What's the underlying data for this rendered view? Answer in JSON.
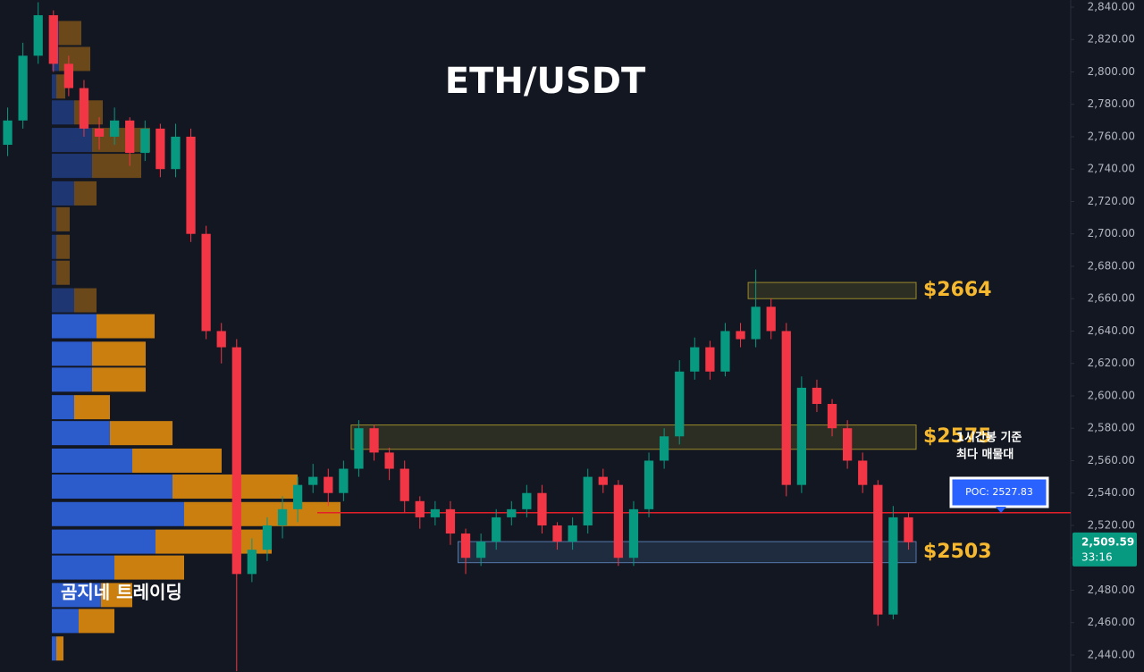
{
  "chart_data": {
    "type": "candlestick",
    "title": "ETH/USDT",
    "up_color": "#089981",
    "down_color": "#f23645",
    "open": [
      2755,
      2770,
      2810,
      2835,
      2805,
      2790,
      2765,
      2760,
      2770,
      2750,
      2765,
      2740,
      2760,
      2700,
      2640,
      2630,
      2490,
      2505,
      2520,
      2530,
      2545,
      2550,
      2540,
      2555,
      2580,
      2565,
      2555,
      2535,
      2525,
      2530,
      2515,
      2500,
      2510,
      2525,
      2530,
      2540,
      2520,
      2510,
      2520,
      2550,
      2545,
      2500,
      2530,
      2560,
      2575,
      2615,
      2630,
      2615,
      2640,
      2635,
      2655,
      2640,
      2545,
      2605,
      2595,
      2580,
      2560,
      2545,
      2465,
      2525
    ],
    "high": [
      2778,
      2818,
      2843,
      2838,
      2810,
      2795,
      2772,
      2778,
      2772,
      2770,
      2768,
      2768,
      2765,
      2705,
      2645,
      2635,
      2512,
      2525,
      2538,
      2550,
      2558,
      2555,
      2560,
      2585,
      2582,
      2568,
      2560,
      2538,
      2535,
      2535,
      2518,
      2515,
      2530,
      2535,
      2545,
      2545,
      2522,
      2525,
      2555,
      2555,
      2548,
      2535,
      2565,
      2580,
      2622,
      2636,
      2634,
      2645,
      2645,
      2678,
      2660,
      2645,
      2612,
      2610,
      2598,
      2585,
      2565,
      2548,
      2532,
      2528
    ],
    "low": [
      2748,
      2765,
      2805,
      2800,
      2785,
      2760,
      2752,
      2755,
      2742,
      2745,
      2735,
      2735,
      2695,
      2635,
      2620,
      2430,
      2485,
      2498,
      2512,
      2522,
      2540,
      2532,
      2535,
      2550,
      2560,
      2548,
      2528,
      2518,
      2520,
      2508,
      2490,
      2495,
      2505,
      2520,
      2525,
      2515,
      2505,
      2505,
      2515,
      2540,
      2495,
      2495,
      2525,
      2555,
      2570,
      2610,
      2610,
      2612,
      2630,
      2630,
      2635,
      2538,
      2540,
      2590,
      2575,
      2555,
      2540,
      2458,
      2462,
      2505
    ],
    "close": [
      2770,
      2810,
      2835,
      2805,
      2790,
      2765,
      2760,
      2770,
      2750,
      2765,
      2740,
      2760,
      2700,
      2640,
      2630,
      2490,
      2505,
      2520,
      2530,
      2545,
      2550,
      2540,
      2555,
      2580,
      2565,
      2555,
      2535,
      2525,
      2530,
      2515,
      2500,
      2510,
      2525,
      2530,
      2540,
      2520,
      2510,
      2520,
      2550,
      2545,
      2500,
      2530,
      2560,
      2575,
      2615,
      2630,
      2615,
      2640,
      2635,
      2655,
      2640,
      2545,
      2605,
      2595,
      2580,
      2560,
      2545,
      2465,
      2525,
      2509.59
    ],
    "ylim": [
      2429.5,
      2844.4
    ],
    "yticks": [
      {
        "value": 2440,
        "label": "2,440.00"
      },
      {
        "value": 2460,
        "label": "2,460.00"
      },
      {
        "value": 2480,
        "label": "2,480.00"
      },
      {
        "value": 2500,
        "label": "2,500.00"
      },
      {
        "value": 2520,
        "label": "2,520.00"
      },
      {
        "value": 2540,
        "label": "2,540.00"
      },
      {
        "value": 2560,
        "label": "2,560.00"
      },
      {
        "value": 2580,
        "label": "2,580.00"
      },
      {
        "value": 2600,
        "label": "2,600.00"
      },
      {
        "value": 2620,
        "label": "2,620.00"
      },
      {
        "value": 2640,
        "label": "2,640.00"
      },
      {
        "value": 2660,
        "label": "2,660.00"
      },
      {
        "value": 2680,
        "label": "2,680.00"
      },
      {
        "value": 2700,
        "label": "2,700.00"
      },
      {
        "value": 2720,
        "label": "2,720.00"
      },
      {
        "value": 2740,
        "label": "2,740.00"
      },
      {
        "value": 2760,
        "label": "2,760.00"
      },
      {
        "value": 2780,
        "label": "2,780.00"
      },
      {
        "value": 2800,
        "label": "2,800.00"
      },
      {
        "value": 2820,
        "label": "2,820.00"
      },
      {
        "value": 2840,
        "label": "2,840.00"
      }
    ],
    "volume_profile": {
      "buy_color": "#2d5fd6",
      "sell_color": "#d4850f",
      "prices": [
        2824,
        2808,
        2791,
        2775,
        2758,
        2742,
        2725,
        2709,
        2692,
        2676,
        2659,
        2643,
        2626,
        2610,
        2593,
        2577,
        2560,
        2544,
        2527,
        2510,
        2494,
        2477,
        2461,
        2444
      ],
      "buy": [
        8,
        8,
        5,
        25,
        45,
        45,
        25,
        5,
        5,
        5,
        25,
        50,
        45,
        45,
        25,
        65,
        90,
        135,
        148,
        116,
        70,
        55,
        30,
        5
      ],
      "sell": [
        25,
        35,
        10,
        32,
        65,
        55,
        25,
        15,
        15,
        15,
        25,
        65,
        60,
        60,
        40,
        70,
        100,
        140,
        175,
        130,
        78,
        35,
        40,
        8
      ]
    },
    "zones": [
      {
        "label": "$2664",
        "low": 2660,
        "high": 2670,
        "start": 49
      },
      {
        "label": "$2575",
        "low": 2567,
        "high": 2582,
        "start": 23
      },
      {
        "label": "$2503",
        "low": 2497,
        "high": 2510,
        "start": 30
      }
    ],
    "poc": {
      "value": 2527.83,
      "label": "POC: 2527.83",
      "note": [
        "1시간봉 기준",
        "최다 매물대"
      ]
    },
    "last_price": {
      "value": 2509.59,
      "label": "2,509.59",
      "countdown": "33:16"
    },
    "watermark": "곰지네 트레이딩"
  }
}
